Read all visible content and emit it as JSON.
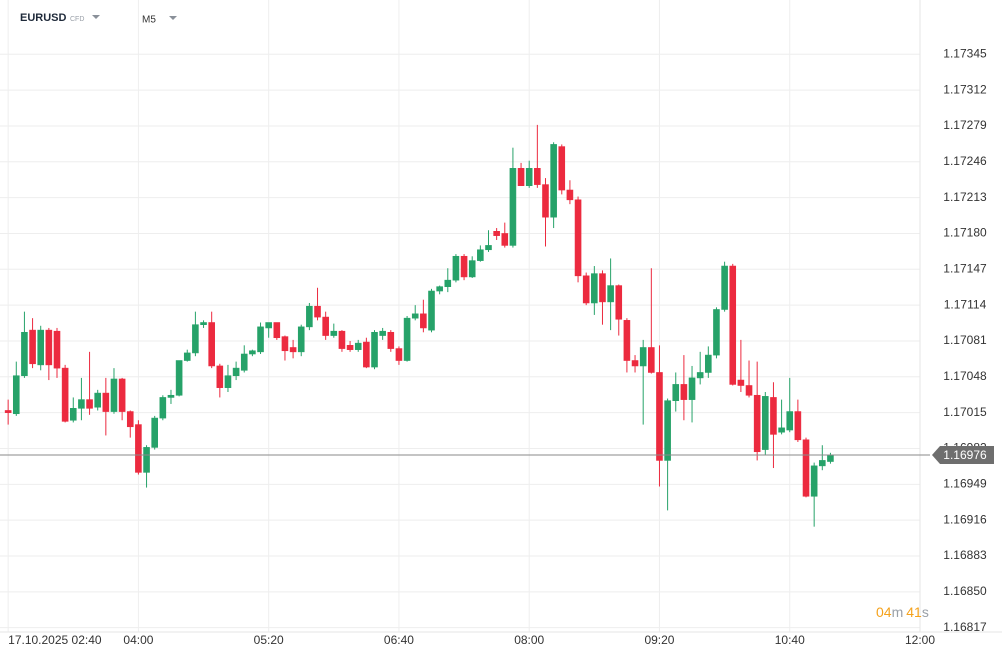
{
  "chart_data": {
    "type": "candlestick",
    "symbol": "EURUSD",
    "instrument_type": "CFD",
    "timeframe": "M5",
    "up_color": "#26a269",
    "down_color": "#ec2a3f",
    "grid": true,
    "x": [
      "2025-10-17 02:40",
      "2025-10-17 02:45",
      "2025-10-17 02:50",
      "2025-10-17 02:55",
      "2025-10-17 03:00",
      "2025-10-17 03:05",
      "2025-10-17 03:10",
      "2025-10-17 03:15",
      "2025-10-17 03:20",
      "2025-10-17 03:25",
      "2025-10-17 03:30",
      "2025-10-17 03:35",
      "2025-10-17 03:40",
      "2025-10-17 03:45",
      "2025-10-17 03:50",
      "2025-10-17 03:55",
      "2025-10-17 04:00",
      "2025-10-17 04:05",
      "2025-10-17 04:10",
      "2025-10-17 04:15",
      "2025-10-17 04:20",
      "2025-10-17 04:25",
      "2025-10-17 04:30",
      "2025-10-17 04:35",
      "2025-10-17 04:40",
      "2025-10-17 04:45",
      "2025-10-17 04:50",
      "2025-10-17 04:55",
      "2025-10-17 05:00",
      "2025-10-17 05:05",
      "2025-10-17 05:10",
      "2025-10-17 05:15",
      "2025-10-17 05:20",
      "2025-10-17 05:25",
      "2025-10-17 05:30",
      "2025-10-17 05:35",
      "2025-10-17 05:40",
      "2025-10-17 05:45",
      "2025-10-17 05:50",
      "2025-10-17 05:55",
      "2025-10-17 06:00",
      "2025-10-17 06:05",
      "2025-10-17 06:10",
      "2025-10-17 06:15",
      "2025-10-17 06:20",
      "2025-10-17 06:25",
      "2025-10-17 06:30",
      "2025-10-17 06:35",
      "2025-10-17 06:40",
      "2025-10-17 06:45",
      "2025-10-17 06:50",
      "2025-10-17 06:55",
      "2025-10-17 07:00",
      "2025-10-17 07:05",
      "2025-10-17 07:10",
      "2025-10-17 07:15",
      "2025-10-17 07:20",
      "2025-10-17 07:25",
      "2025-10-17 07:30",
      "2025-10-17 07:35",
      "2025-10-17 07:40",
      "2025-10-17 07:45",
      "2025-10-17 07:50",
      "2025-10-17 07:55",
      "2025-10-17 08:00",
      "2025-10-17 08:05",
      "2025-10-17 08:10",
      "2025-10-17 08:15",
      "2025-10-17 08:20",
      "2025-10-17 08:25",
      "2025-10-17 08:30",
      "2025-10-17 08:35",
      "2025-10-17 08:40",
      "2025-10-17 08:45",
      "2025-10-17 08:50",
      "2025-10-17 08:55",
      "2025-10-17 09:00",
      "2025-10-17 09:05",
      "2025-10-17 09:10",
      "2025-10-17 09:15",
      "2025-10-17 09:20",
      "2025-10-17 09:25",
      "2025-10-17 09:30",
      "2025-10-17 09:35",
      "2025-10-17 09:40",
      "2025-10-17 09:45",
      "2025-10-17 09:50",
      "2025-10-17 09:55",
      "2025-10-17 10:00",
      "2025-10-17 10:05",
      "2025-10-17 10:10",
      "2025-10-17 10:15",
      "2025-10-17 10:20",
      "2025-10-17 10:25",
      "2025-10-17 10:30",
      "2025-10-17 10:35",
      "2025-10-17 10:40",
      "2025-10-17 10:45",
      "2025-10-17 10:50",
      "2025-10-17 10:55",
      "2025-10-17 11:00",
      "2025-10-17 11:05"
    ],
    "open": [
      1.17017,
      1.17014,
      1.17049,
      1.17091,
      1.17059,
      1.17091,
      1.1709,
      1.17056,
      1.17008,
      1.17019,
      1.17027,
      1.1702,
      1.17033,
      1.17016,
      1.17046,
      1.17016,
      1.17004,
      1.1696,
      1.16983,
      1.1701,
      1.17029,
      1.17031,
      1.17063,
      1.1707,
      1.17096,
      1.17098,
      1.17058,
      1.17038,
      1.17049,
      1.17054,
      1.17069,
      1.17071,
      1.17093,
      1.17098,
      1.17085,
      1.17075,
      1.17071,
      1.17094,
      1.17113,
      1.17103,
      1.17086,
      1.1709,
      1.17077,
      1.17073,
      1.1708,
      1.17057,
      1.17086,
      1.17089,
      1.17074,
      1.17063,
      1.17102,
      1.17106,
      1.17091,
      1.17127,
      1.17131,
      1.17137,
      1.17159,
      1.1714,
      1.17155,
      1.17165,
      1.17182,
      1.1718,
      1.17169,
      1.1724,
      1.17224,
      1.1724,
      1.17225,
      1.17195,
      1.1726,
      1.1722,
      1.17211,
      1.17141,
      1.17116,
      1.17143,
      1.17117,
      1.17132,
      1.171,
      1.17063,
      1.17058,
      1.17075,
      1.17052,
      1.16971,
      1.17026,
      1.17041,
      1.17027,
      1.17047,
      1.17052,
      1.17068,
      1.1711,
      1.1715,
      1.17045,
      1.1704,
      1.17031,
      1.16981,
      1.17029,
      1.16997,
      1.16999,
      1.17016,
      1.1699,
      1.16938,
      1.16966,
      1.1697
    ],
    "high": [
      1.17027,
      1.17062,
      1.17108,
      1.17102,
      1.17095,
      1.17093,
      1.17093,
      1.17059,
      1.17029,
      1.17047,
      1.17071,
      1.17036,
      1.17047,
      1.17056,
      1.17047,
      1.17017,
      1.17008,
      1.16985,
      1.17012,
      1.17031,
      1.17036,
      1.17063,
      1.17073,
      1.17108,
      1.171,
      1.17108,
      1.1706,
      1.17059,
      1.17062,
      1.17077,
      1.17073,
      1.17098,
      1.17098,
      1.17098,
      1.17086,
      1.17082,
      1.17096,
      1.17116,
      1.1713,
      1.17108,
      1.17097,
      1.17091,
      1.17081,
      1.17082,
      1.17084,
      1.17091,
      1.17093,
      1.17091,
      1.17076,
      1.17104,
      1.17114,
      1.17119,
      1.17129,
      1.17132,
      1.17148,
      1.17161,
      1.17161,
      1.17159,
      1.17169,
      1.17183,
      1.17185,
      1.1719,
      1.17259,
      1.17245,
      1.17247,
      1.1728,
      1.17231,
      1.17264,
      1.17262,
      1.17229,
      1.17214,
      1.17144,
      1.1715,
      1.17146,
      1.17157,
      1.17133,
      1.17102,
      1.17068,
      1.17082,
      1.17148,
      1.17077,
      1.17028,
      1.17052,
      1.17068,
      1.17058,
      1.17071,
      1.17076,
      1.17112,
      1.17154,
      1.17152,
      1.17082,
      1.17063,
      1.17062,
      1.17034,
      1.17043,
      1.17027,
      1.17047,
      1.17027,
      1.16992,
      1.16969,
      1.16985,
      1.16978
    ],
    "low": [
      1.17004,
      1.17012,
      1.17047,
      1.17056,
      1.17054,
      1.17045,
      1.17047,
      1.17006,
      1.17006,
      1.17008,
      1.17013,
      1.17017,
      1.16994,
      1.17014,
      1.17008,
      1.16992,
      1.16958,
      1.16946,
      1.16981,
      1.17008,
      1.17023,
      1.1703,
      1.17062,
      1.17067,
      1.17093,
      1.17056,
      1.17029,
      1.17034,
      1.17045,
      1.17052,
      1.17067,
      1.17069,
      1.17084,
      1.17082,
      1.17063,
      1.17065,
      1.17067,
      1.17091,
      1.171,
      1.17082,
      1.17084,
      1.17071,
      1.17071,
      1.17071,
      1.17056,
      1.17055,
      1.17082,
      1.17071,
      1.17059,
      1.17062,
      1.171,
      1.17089,
      1.17089,
      1.17124,
      1.17126,
      1.17135,
      1.17137,
      1.17139,
      1.17154,
      1.17163,
      1.17174,
      1.17167,
      1.17167,
      1.17224,
      1.17222,
      1.17222,
      1.17168,
      1.17185,
      1.17216,
      1.17207,
      1.17135,
      1.17114,
      1.17105,
      1.17096,
      1.17091,
      1.17086,
      1.17052,
      1.17052,
      1.17004,
      1.17051,
      1.16947,
      1.16925,
      1.17016,
      1.17008,
      1.17006,
      1.17041,
      1.17047,
      1.17065,
      1.17108,
      1.1704,
      1.17034,
      1.17029,
      1.16971,
      1.16976,
      1.16964,
      1.16995,
      1.16997,
      1.16988,
      1.16937,
      1.1691,
      1.16962,
      1.16968
    ],
    "close": [
      1.17015,
      1.17049,
      1.17089,
      1.1706,
      1.17091,
      1.17059,
      1.17056,
      1.17007,
      1.17019,
      1.17027,
      1.17019,
      1.17033,
      1.17016,
      1.17046,
      1.17016,
      1.17002,
      1.1696,
      1.16983,
      1.1701,
      1.17029,
      1.17031,
      1.17063,
      1.1707,
      1.17096,
      1.17098,
      1.17058,
      1.17038,
      1.17049,
      1.17056,
      1.17069,
      1.17072,
      1.17094,
      1.17098,
      1.17084,
      1.17072,
      1.17071,
      1.17094,
      1.17113,
      1.17103,
      1.17086,
      1.1709,
      1.17074,
      1.17073,
      1.17079,
      1.17057,
      1.17089,
      1.1709,
      1.17074,
      1.17063,
      1.17102,
      1.17106,
      1.17093,
      1.17127,
      1.17131,
      1.17137,
      1.17159,
      1.1714,
      1.17155,
      1.17165,
      1.17169,
      1.17178,
      1.17169,
      1.1724,
      1.17224,
      1.1724,
      1.17225,
      1.17195,
      1.17262,
      1.1722,
      1.17211,
      1.17141,
      1.17116,
      1.17143,
      1.17117,
      1.17132,
      1.17101,
      1.17063,
      1.17058,
      1.17075,
      1.17052,
      1.16971,
      1.17026,
      1.17041,
      1.17027,
      1.17047,
      1.17052,
      1.17068,
      1.1711,
      1.1715,
      1.17041,
      1.1704,
      1.17031,
      1.16979,
      1.1703,
      1.16995,
      1.17001,
      1.17016,
      1.1699,
      1.16938,
      1.16966,
      1.16971,
      1.16976
    ],
    "last_price": 1.16976,
    "countdown": {
      "minutes": "04",
      "minutes_unit": "m",
      "seconds": "41",
      "seconds_unit": "s"
    },
    "xlim": [
      "2025-10-17 02:35",
      "2025-10-17 12:00"
    ],
    "xticks": [
      {
        "value": "2025-10-17 02:40",
        "label": "17.10.2025 02:40"
      },
      {
        "value": "2025-10-17 04:00",
        "label": "04:00"
      },
      {
        "value": "2025-10-17 05:20",
        "label": "05:20"
      },
      {
        "value": "2025-10-17 06:40",
        "label": "06:40"
      },
      {
        "value": "2025-10-17 08:00",
        "label": "08:00"
      },
      {
        "value": "2025-10-17 09:20",
        "label": "09:20"
      },
      {
        "value": "2025-10-17 10:40",
        "label": "10:40"
      },
      {
        "value": "2025-10-17 12:00",
        "label": "12:00"
      }
    ],
    "ylim": [
      1.16813,
      1.17395
    ],
    "yticks": [
      1.17345,
      1.17312,
      1.17279,
      1.17246,
      1.17213,
      {
        "value": 1.1718,
        "label": "1.17180"
      },
      1.17147,
      1.17114,
      1.17081,
      1.17048,
      1.17015,
      1.16982,
      1.16949,
      1.16916,
      1.16883,
      {
        "value": 1.1685,
        "label": "1.16850"
      },
      1.16817
    ]
  }
}
